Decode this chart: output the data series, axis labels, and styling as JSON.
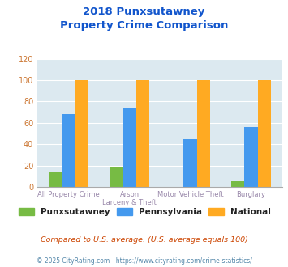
{
  "title_line1": "2018 Punxsutawney",
  "title_line2": "Property Crime Comparison",
  "cat_labels_line1": [
    "All Property Crime",
    "Arson",
    "Motor Vehicle Theft",
    "Burglary"
  ],
  "cat_labels_line2": [
    "",
    "Larceny & Theft",
    "",
    ""
  ],
  "punxsutawney": [
    14,
    18,
    0,
    5
  ],
  "pennsylvania": [
    68,
    74,
    45,
    56
  ],
  "national": [
    100,
    100,
    100,
    100
  ],
  "colors": {
    "punxsutawney": "#77bb44",
    "pennsylvania": "#4499ee",
    "national": "#ffaa22"
  },
  "ylim": [
    0,
    120
  ],
  "yticks": [
    0,
    20,
    40,
    60,
    80,
    100,
    120
  ],
  "title_color": "#1155cc",
  "bg_color": "#dce9f0",
  "legend_labels": [
    "Punxsutawney",
    "Pennsylvania",
    "National"
  ],
  "footnote1": "Compared to U.S. average. (U.S. average equals 100)",
  "footnote2": "© 2025 CityRating.com - https://www.cityrating.com/crime-statistics/",
  "footnote1_color": "#cc4400",
  "footnote2_color": "#5588aa",
  "ytick_color": "#cc7733",
  "xtick_color": "#9988aa"
}
